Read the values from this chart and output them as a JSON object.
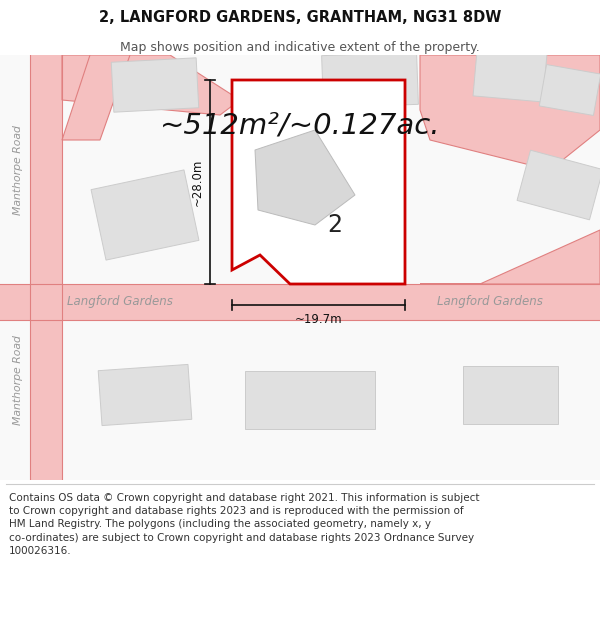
{
  "title_line1": "2, LANGFORD GARDENS, GRANTHAM, NG31 8DW",
  "title_line2": "Map shows position and indicative extent of the property.",
  "area_text": "~512m²/~0.127ac.",
  "label_2": "2",
  "dim_width": "~19.7m",
  "dim_height": "~28.0m",
  "road_label_left": "Langford Gardens",
  "road_label_right": "Langford Gardens",
  "road_label_manthorpe1": "Manthorpe Road",
  "road_label_manthorpe2": "Manthorpe Road",
  "footer_text": "Contains OS data © Crown copyright and database right 2021. This information is subject\nto Crown copyright and database rights 2023 and is reproduced with the permission of\nHM Land Registry. The polygons (including the associated geometry, namely x, y\nco-ordinates) are subject to Crown copyright and database rights 2023 Ordnance Survey\n100026316.",
  "bg_color": "#ffffff",
  "road_color": "#f5c0c0",
  "road_outline_color": "#e08080",
  "building_fill": "#e0e0e0",
  "building_edge": "#cccccc",
  "plot_fill": "#ffffff",
  "plot_edge": "#cc0000",
  "plot_edge_width": 2.0,
  "dim_line_color": "#111111",
  "footer_fontsize": 7.5,
  "title_fontsize": 10.5,
  "subtitle_fontsize": 9.0,
  "area_fontsize": 21,
  "label_fontsize": 17
}
